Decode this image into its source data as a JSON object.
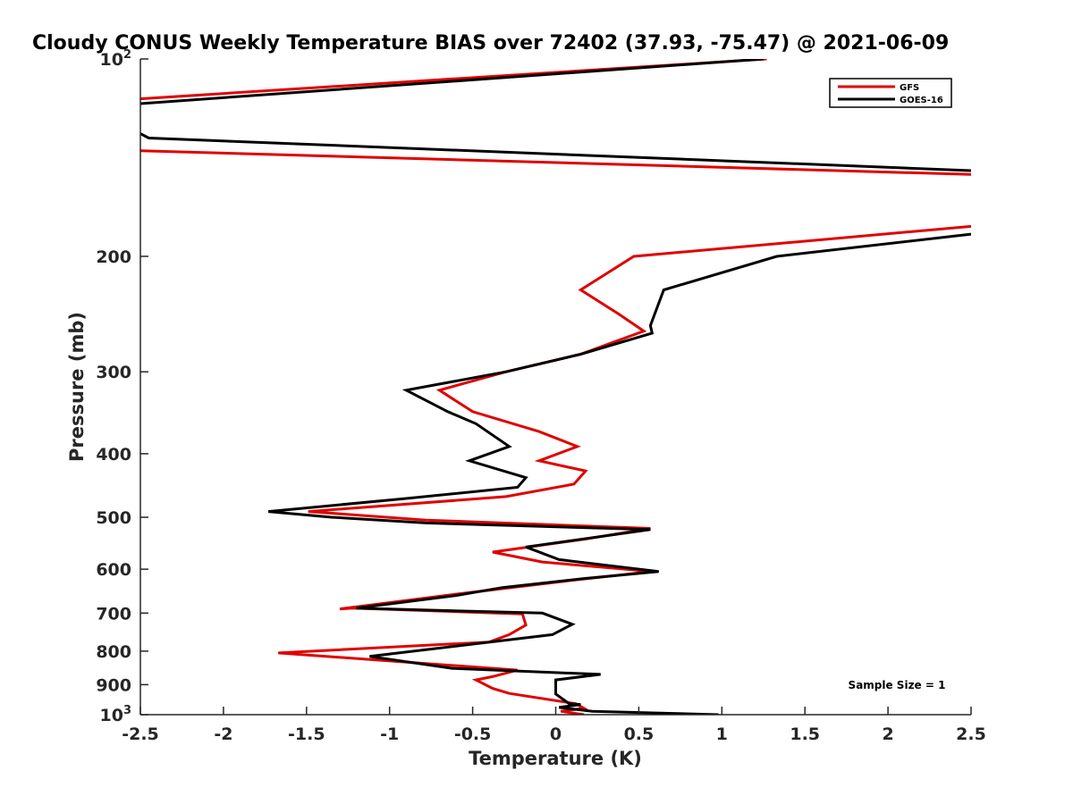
{
  "chart_data": {
    "type": "line",
    "title": "Cloudy CONUS Weekly Temperature BIAS over 72402 (37.93, -75.47) @ 2021-06-09",
    "xlabel": "Temperature (K)",
    "ylabel": "Pressure (mb)",
    "xlim": [
      -2.5,
      2.5
    ],
    "ylim": [
      100,
      1000
    ],
    "y_scale": "log",
    "y_reversed": true,
    "grid": false,
    "legend_position": "top-right",
    "x_ticks": [
      -2.5,
      -2,
      -1.5,
      -1,
      -0.5,
      0,
      0.5,
      1,
      1.5,
      2,
      2.5
    ],
    "x_tick_labels": [
      "-2.5",
      "-2",
      "-1.5",
      "-1",
      "-0.5",
      "0",
      "0.5",
      "1",
      "1.5",
      "2",
      "2.5"
    ],
    "y_ticks": [
      {
        "value": 100,
        "base": "10",
        "exp": "2"
      },
      {
        "value": 200,
        "label": "200"
      },
      {
        "value": 300,
        "label": "300"
      },
      {
        "value": 400,
        "label": "400"
      },
      {
        "value": 500,
        "label": "500"
      },
      {
        "value": 600,
        "label": "600"
      },
      {
        "value": 700,
        "label": "700"
      },
      {
        "value": 800,
        "label": "800"
      },
      {
        "value": 900,
        "label": "900"
      },
      {
        "value": 1000,
        "base": "10",
        "exp": "3"
      }
    ],
    "series": [
      {
        "name": "GFS",
        "color": "#e00000",
        "points": [
          [
            1.27,
            100
          ],
          [
            -2.5,
            115
          ],
          [
            null,
            125
          ],
          [
            -2.5,
            138
          ],
          [
            2.5,
            150
          ],
          [
            null,
            165
          ],
          [
            2.5,
            180
          ],
          [
            0.47,
            200
          ],
          [
            0.15,
            225
          ],
          [
            0.38,
            245
          ],
          [
            0.53,
            260
          ],
          [
            0.15,
            282
          ],
          [
            -0.3,
            300
          ],
          [
            -0.7,
            320
          ],
          [
            -0.5,
            345
          ],
          [
            -0.1,
            370
          ],
          [
            0.13,
            390
          ],
          [
            -0.1,
            410
          ],
          [
            0.18,
            425
          ],
          [
            0.11,
            445
          ],
          [
            -0.3,
            465
          ],
          [
            -1.49,
            490
          ],
          [
            -0.78,
            505
          ],
          [
            0.57,
            520
          ],
          [
            0.17,
            540
          ],
          [
            -0.38,
            565
          ],
          [
            -0.08,
            585
          ],
          [
            0.58,
            605
          ],
          [
            0.07,
            625
          ],
          [
            -0.6,
            655
          ],
          [
            -1.3,
            690
          ],
          [
            -1.22,
            688
          ],
          [
            -0.2,
            702
          ],
          [
            -0.18,
            730
          ],
          [
            -0.28,
            755
          ],
          [
            -0.4,
            775
          ],
          [
            -1.67,
            805
          ],
          [
            -0.23,
            855
          ],
          [
            -0.38,
            875
          ],
          [
            -0.48,
            885
          ],
          [
            -0.38,
            912
          ],
          [
            -0.28,
            928
          ],
          [
            0.12,
            962
          ],
          [
            0.17,
            978
          ],
          [
            0.03,
            988
          ],
          [
            0.17,
            1000
          ]
        ]
      },
      {
        "name": "GOES-16",
        "color": "#000000",
        "points": [
          [
            1.25,
            100
          ],
          [
            -2.5,
            117
          ],
          [
            null,
            125
          ],
          [
            -2.5,
            130
          ],
          [
            -2.45,
            132
          ],
          [
            2.5,
            148
          ],
          [
            null,
            165
          ],
          [
            2.5,
            185
          ],
          [
            1.33,
            200
          ],
          [
            0.65,
            225
          ],
          [
            0.57,
            255
          ],
          [
            0.58,
            262
          ],
          [
            0.15,
            282
          ],
          [
            -0.3,
            300
          ],
          [
            -0.9,
            320
          ],
          [
            -0.65,
            345
          ],
          [
            -0.48,
            360
          ],
          [
            -0.28,
            390
          ],
          [
            -0.52,
            410
          ],
          [
            -0.18,
            435
          ],
          [
            -0.23,
            450
          ],
          [
            -0.9,
            468
          ],
          [
            -1.73,
            490
          ],
          [
            -1.35,
            500
          ],
          [
            -0.78,
            510
          ],
          [
            0.57,
            522
          ],
          [
            -0.18,
            555
          ],
          [
            0.02,
            580
          ],
          [
            0.62,
            605
          ],
          [
            0.17,
            620
          ],
          [
            -0.32,
            640
          ],
          [
            -0.6,
            658
          ],
          [
            -1.2,
            688
          ],
          [
            -0.08,
            700
          ],
          [
            0.1,
            728
          ],
          [
            -0.02,
            755
          ],
          [
            -1.12,
            815
          ],
          [
            -0.62,
            850
          ],
          [
            0.27,
            868
          ],
          [
            0.0,
            885
          ],
          [
            0.0,
            930
          ],
          [
            0.08,
            962
          ],
          [
            0.15,
            965
          ],
          [
            0.02,
            975
          ],
          [
            0.22,
            988
          ],
          [
            0.98,
            1000
          ]
        ]
      }
    ],
    "annotations": [
      "Sample Size = 1"
    ]
  }
}
